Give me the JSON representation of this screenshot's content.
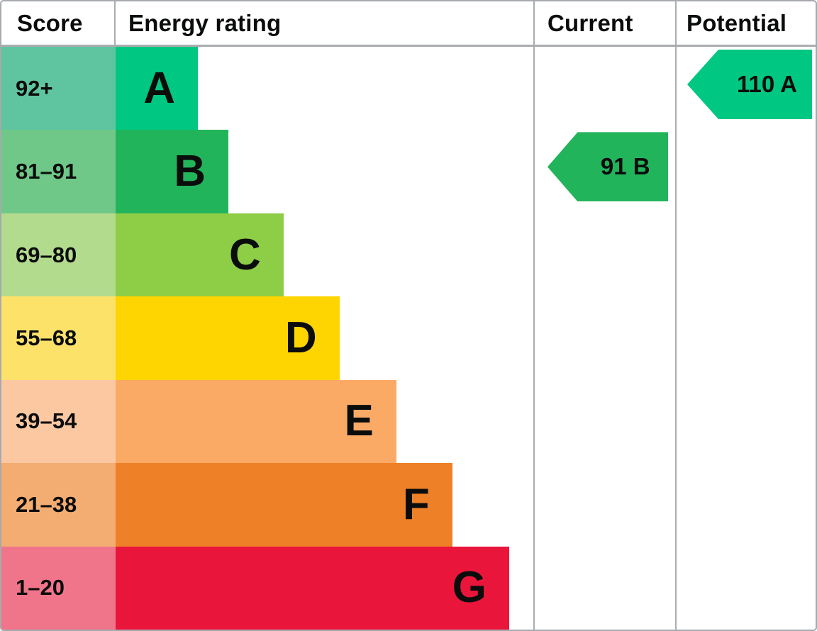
{
  "header": {
    "score": "Score",
    "energy_rating": "Energy rating",
    "current": "Current",
    "potential": "Potential"
  },
  "style": {
    "grid_color": "#aaadb0",
    "border_color": "#a6a9ad",
    "text_color": "#0b0c0c"
  },
  "chart_data": {
    "type": "bar",
    "orientation": "horizontal",
    "columns": [
      "Score",
      "Energy rating",
      "Current",
      "Potential"
    ],
    "bands": [
      {
        "letter": "A",
        "score_range": "92+",
        "bar_color": "#00c781",
        "score_tint": "#5fc5a1",
        "bar_length_pct": 19.7
      },
      {
        "letter": "B",
        "score_range": "81–91",
        "bar_color": "#22b45b",
        "score_tint": "#6fc887",
        "bar_length_pct": 27.0
      },
      {
        "letter": "C",
        "score_range": "69–80",
        "bar_color": "#8dce46",
        "score_tint": "#b3db8e",
        "bar_length_pct": 40.2
      },
      {
        "letter": "D",
        "score_range": "55–68",
        "bar_color": "#fed501",
        "score_tint": "#fde26a",
        "bar_length_pct": 53.6
      },
      {
        "letter": "E",
        "score_range": "39–54",
        "bar_color": "#fbaa66",
        "score_tint": "#fcc8a2",
        "bar_length_pct": 67.2
      },
      {
        "letter": "F",
        "score_range": "21–38",
        "bar_color": "#ee8127",
        "score_tint": "#f3ad72",
        "bar_length_pct": 80.6
      },
      {
        "letter": "G",
        "score_range": "1–20",
        "bar_color": "#e9153b",
        "score_tint": "#f0758a",
        "bar_length_pct": 94.2
      }
    ],
    "current": {
      "label": "91 B",
      "value": 91,
      "band": "B",
      "color": "#22b45b"
    },
    "potential": {
      "label": "110 A",
      "value": 110,
      "band": "A",
      "color": "#00c781"
    }
  }
}
